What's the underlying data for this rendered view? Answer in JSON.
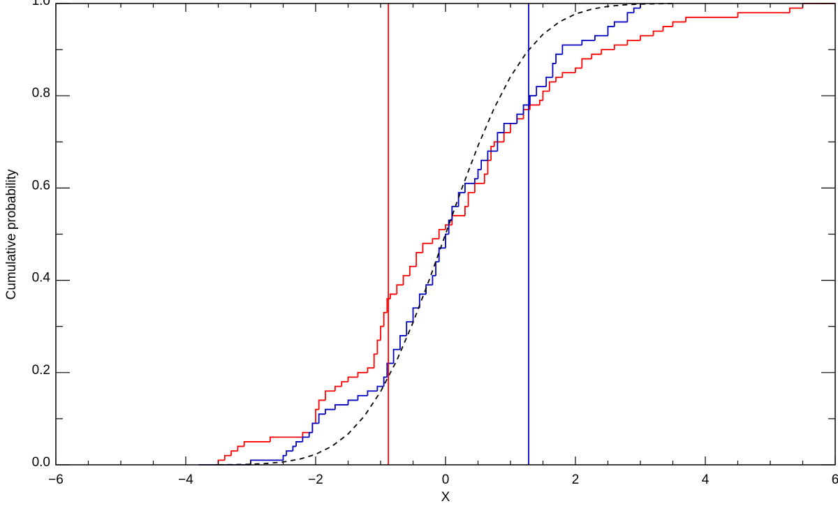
{
  "chart_data": {
    "type": "line",
    "x_label": "X",
    "y_label": "Cumulative probability",
    "xlim": [
      -6,
      6
    ],
    "ylim": [
      0,
      1
    ],
    "xticks": [
      {
        "value": -6,
        "label": "−6"
      },
      {
        "value": -4,
        "label": "−4"
      },
      {
        "value": -2,
        "label": "−2"
      },
      0,
      2,
      4,
      6
    ],
    "yticks": [
      {
        "value": 0,
        "label": "0.0"
      },
      0.2,
      0.4,
      0.6,
      0.8,
      {
        "value": 1,
        "label": "1.0"
      }
    ],
    "xminorticks": [
      -5.5,
      -5,
      -4.5,
      -3.5,
      -3,
      -2.5,
      -1.5,
      -1,
      -0.5,
      0.5,
      1,
      1.5,
      2.5,
      3,
      3.5,
      4.5,
      5,
      5.5
    ],
    "yminorticks": [
      0.1,
      0.3,
      0.5,
      0.7,
      0.9
    ],
    "series": [
      {
        "color": "#ff0000",
        "drawstyle": "steps",
        "x": [
          -3.55,
          -3.5,
          -3.4,
          -3.3,
          -3.2,
          -3.1,
          -2.7,
          -2.2,
          -2.05,
          -2.0,
          -1.95,
          -1.85,
          -1.7,
          -1.6,
          -1.5,
          -1.35,
          -1.2,
          -1.1,
          -1.05,
          -1.0,
          -0.95,
          -0.9,
          -0.85,
          -0.75,
          -0.65,
          -0.55,
          -0.45,
          -0.35,
          -0.2,
          -0.1,
          0.0,
          0.1,
          0.3,
          0.35,
          0.45,
          0.6,
          0.65,
          0.7,
          0.75,
          0.9,
          1.0,
          1.1,
          1.2,
          1.3,
          1.45,
          1.5,
          1.6,
          1.7,
          1.8,
          2.0,
          2.1,
          2.25,
          2.4,
          2.6,
          2.8,
          3.0,
          3.2,
          3.35,
          3.5,
          3.7,
          4.5,
          5.3,
          5.5,
          6.0
        ],
        "values": [
          0.0,
          0.01,
          0.02,
          0.03,
          0.04,
          0.05,
          0.06,
          0.07,
          0.09,
          0.12,
          0.14,
          0.16,
          0.17,
          0.18,
          0.19,
          0.2,
          0.21,
          0.24,
          0.27,
          0.3,
          0.33,
          0.36,
          0.37,
          0.39,
          0.41,
          0.43,
          0.46,
          0.48,
          0.49,
          0.51,
          0.52,
          0.54,
          0.56,
          0.59,
          0.61,
          0.63,
          0.66,
          0.69,
          0.7,
          0.72,
          0.74,
          0.75,
          0.77,
          0.78,
          0.79,
          0.81,
          0.83,
          0.84,
          0.85,
          0.86,
          0.88,
          0.89,
          0.9,
          0.91,
          0.92,
          0.93,
          0.94,
          0.95,
          0.96,
          0.97,
          0.98,
          0.99,
          1.0,
          1.0
        ]
      },
      {
        "color": "#0000c0",
        "drawstyle": "steps",
        "x": [
          -3.8,
          -3.0,
          -2.5,
          -2.45,
          -2.35,
          -2.3,
          -2.2,
          -2.1,
          -2.05,
          -1.95,
          -1.85,
          -1.7,
          -1.5,
          -1.35,
          -1.2,
          -1.05,
          -0.95,
          -0.9,
          -0.8,
          -0.7,
          -0.6,
          -0.5,
          -0.4,
          -0.3,
          -0.2,
          -0.15,
          -0.1,
          0.0,
          0.05,
          0.1,
          0.2,
          0.3,
          0.45,
          0.5,
          0.55,
          0.65,
          0.8,
          0.9,
          1.1,
          1.2,
          1.3,
          1.4,
          1.55,
          1.65,
          1.7,
          1.8,
          2.1,
          2.3,
          2.5,
          2.6,
          2.8,
          2.9,
          3.0
        ],
        "values": [
          0.0,
          0.01,
          0.02,
          0.03,
          0.04,
          0.05,
          0.06,
          0.07,
          0.09,
          0.11,
          0.12,
          0.13,
          0.14,
          0.15,
          0.16,
          0.17,
          0.19,
          0.22,
          0.25,
          0.28,
          0.31,
          0.34,
          0.37,
          0.39,
          0.41,
          0.44,
          0.47,
          0.5,
          0.53,
          0.56,
          0.59,
          0.61,
          0.62,
          0.64,
          0.66,
          0.68,
          0.72,
          0.74,
          0.76,
          0.78,
          0.8,
          0.82,
          0.84,
          0.87,
          0.89,
          0.91,
          0.92,
          0.93,
          0.95,
          0.96,
          0.98,
          0.99,
          1.0
        ]
      },
      {
        "color": "#000000",
        "dashed": true,
        "x": [
          -3.5,
          -3.25,
          -3,
          -2.75,
          -2.5,
          -2.25,
          -2,
          -1.75,
          -1.5,
          -1.25,
          -1,
          -0.75,
          -0.5,
          -0.25,
          0,
          0.25,
          0.5,
          0.75,
          1,
          1.25,
          1.5,
          1.75,
          2,
          2.25,
          2.5,
          2.75,
          3,
          3.25,
          3.5
        ],
        "values": [
          0.0002,
          0.0006,
          0.0013,
          0.003,
          0.0062,
          0.0122,
          0.0228,
          0.0401,
          0.0668,
          0.1056,
          0.1587,
          0.2266,
          0.3085,
          0.4013,
          0.5,
          0.5987,
          0.6915,
          0.7734,
          0.8413,
          0.8944,
          0.9332,
          0.9599,
          0.9772,
          0.9878,
          0.9938,
          0.997,
          0.9987,
          0.9994,
          0.9998
        ]
      }
    ],
    "vlines": [
      {
        "x": -0.88,
        "color": "#ff0000"
      },
      {
        "x": 1.28,
        "color": "#0000c0"
      }
    ]
  }
}
